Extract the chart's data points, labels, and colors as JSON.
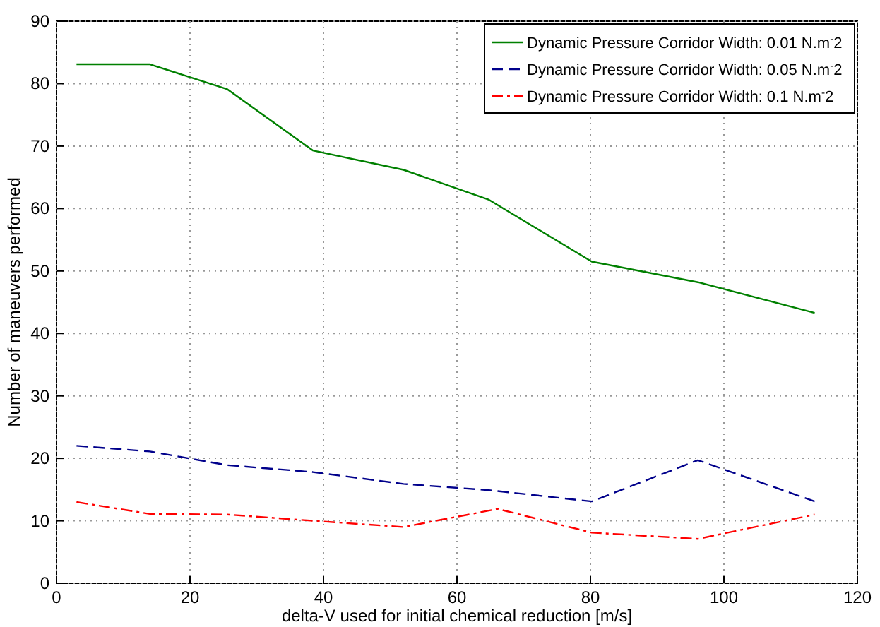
{
  "chart_data": {
    "type": "line",
    "xlabel": "delta-V used for initial chemical reduction [m/s]",
    "ylabel": "Number of maneuvers performed",
    "x": [
      3,
      14,
      25.6,
      38.4,
      52,
      64.8,
      80.2,
      96.1,
      113.6
    ],
    "series": [
      {
        "name": "Dynamic Pressure Corridor Width: 0.01 N.m$^{-}$2",
        "color": "#008000",
        "line_style": "solid",
        "values": [
          83.1,
          83.1,
          79.1,
          69.3,
          66.2,
          61.4,
          51.5,
          48.2,
          43.3
        ]
      },
      {
        "name": "Dynamic Pressure Corridor Width: 0.05 N.m$^{-}$2",
        "color": "#00008b",
        "line_style": "dashed",
        "values": [
          22,
          21.1,
          18.9,
          17.8,
          15.9,
          14.9,
          13.1,
          19.7,
          13.1
        ]
      },
      {
        "name": "Dynamic Pressure Corridor Width: 0.1 N.m$^{-}$2",
        "color": "#ff0000",
        "line_style": "dashdot",
        "x": [
          3,
          14,
          25.6,
          38.4,
          52,
          66.1,
          80.2,
          96.1,
          113.6
        ],
        "values": [
          13,
          11.1,
          11,
          10,
          9,
          11.9,
          8.1,
          7.1,
          11
        ]
      }
    ],
    "xlim": [
      0,
      120
    ],
    "xticks": [
      0,
      20,
      40,
      60,
      80,
      100,
      120
    ],
    "ylim": [
      0,
      90
    ],
    "yticks": [
      0,
      10,
      20,
      30,
      40,
      50,
      60,
      70,
      80,
      90
    ],
    "grid": true,
    "legend": "top right",
    "marker": "none"
  }
}
